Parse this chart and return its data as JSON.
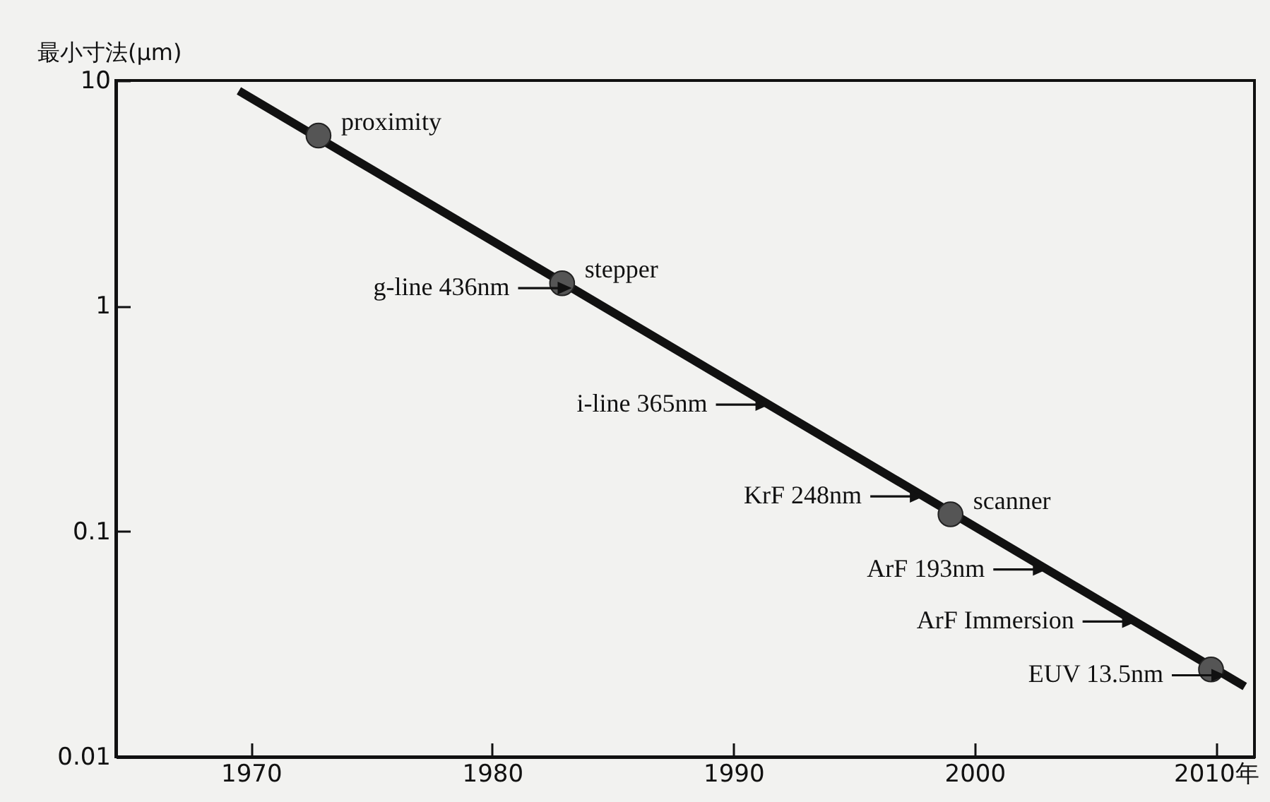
{
  "chart_data": {
    "type": "line",
    "ylabel": "最小寸法(μm)",
    "log": "y",
    "grid": false,
    "xlim": [
      1964.4,
      2011.6
    ],
    "ylim": [
      0.01,
      10
    ],
    "xticks": [
      1970,
      1980,
      1990,
      2000,
      {
        "value": 2010,
        "label": "2010年"
      }
    ],
    "yticks": [
      {
        "value": 0.01,
        "label": "0.01"
      },
      {
        "value": 0.1,
        "label": "0.1"
      },
      {
        "value": 1,
        "label": "1"
      },
      {
        "value": 10,
        "label": "10"
      }
    ],
    "series": [
      {
        "color": "#111111",
        "marker": "none",
        "x": [
          1969.5,
          2011.2
        ],
        "values": [
          9.0,
          0.0205
        ]
      },
      {
        "type": "scatter",
        "color": "#555555",
        "marker": "circle",
        "x": [
          1972.8,
          1982.9,
          1999.0,
          2009.8
        ],
        "values": [
          5.7,
          1.26,
          0.119,
          0.0244
        ]
      }
    ],
    "annotations": [
      {
        "text": "proximity",
        "x": 1972.8,
        "y": 5.7
      },
      {
        "text": "stepper",
        "x": 1982.9,
        "y": 1.26
      },
      {
        "text": "scanner",
        "x": 1999.0,
        "y": 0.119
      },
      {
        "text": "g-line 436nm",
        "x": 1983.3,
        "y": 1.2
      },
      {
        "text": "i-line 365nm",
        "x": 1991.5,
        "y": 0.365
      },
      {
        "text": "KrF 248nm",
        "x": 1997.9,
        "y": 0.143
      },
      {
        "text": "ArF 193nm",
        "x": 2003.0,
        "y": 0.0678
      },
      {
        "text": "ArF Immersion",
        "x": 2006.7,
        "y": 0.0398
      },
      {
        "text": "EUV 13.5nm",
        "x": 2010.4,
        "y": 0.023
      }
    ]
  }
}
